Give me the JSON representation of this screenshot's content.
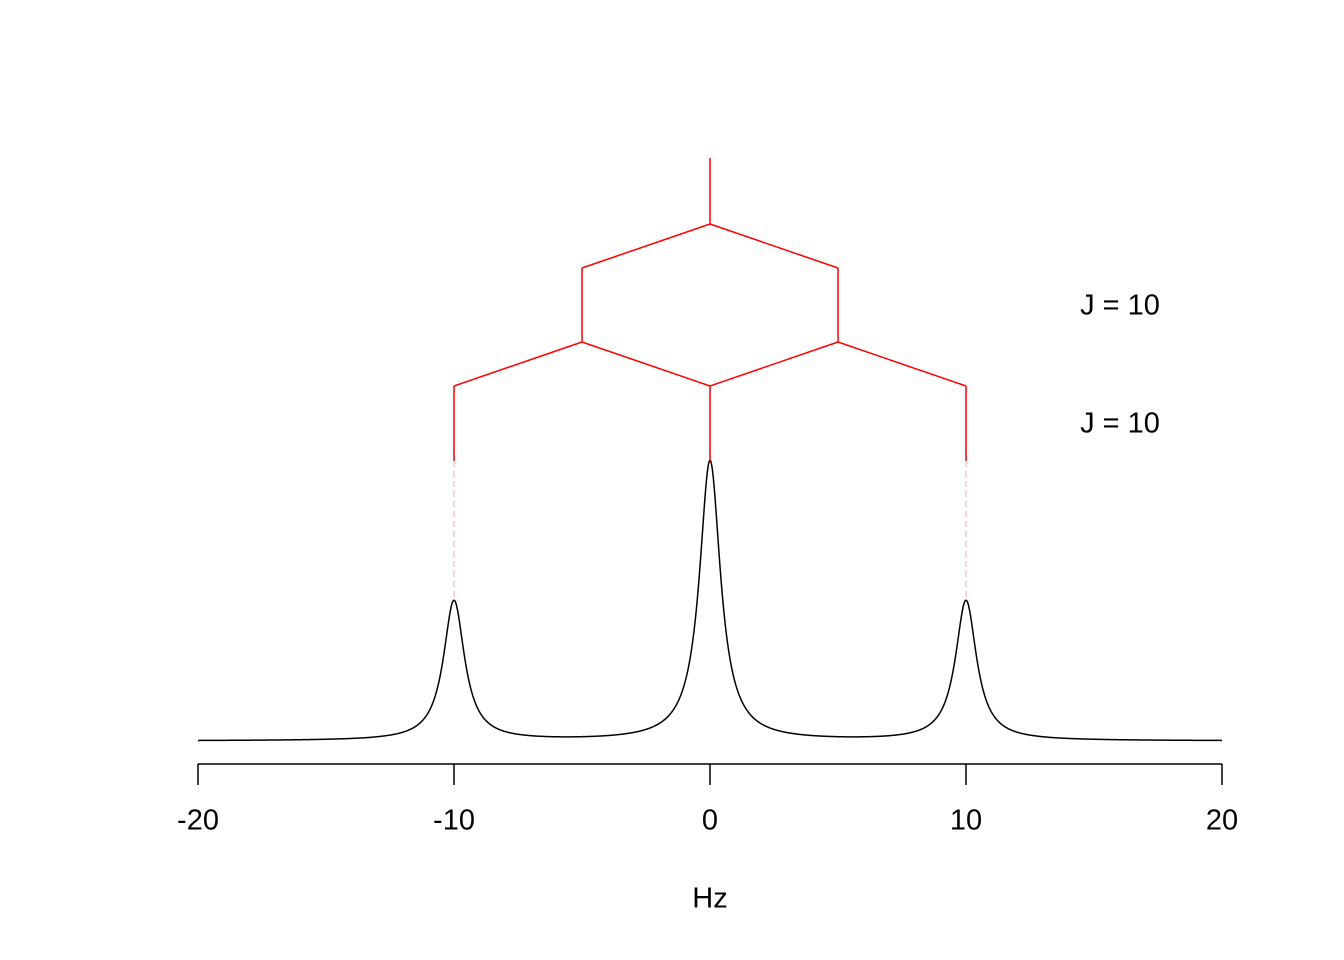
{
  "chart_data": {
    "type": "nmr-splitting",
    "xlabel": "Hz",
    "xlim": [
      -20,
      20
    ],
    "xticks": [
      -20,
      -10,
      0,
      10,
      20
    ],
    "center": 0,
    "peaks": {
      "x": [
        -10,
        0,
        10
      ],
      "intensities": [
        1,
        2,
        1
      ]
    },
    "peak_half_width": 0.5,
    "couplings": [
      {
        "J": 10,
        "label": "J = 10"
      },
      {
        "J": 10,
        "label": "J = 10"
      }
    ],
    "tree_color": "#ff0000",
    "guide_color": "#ffc0cb",
    "curve_color": "#000000"
  }
}
